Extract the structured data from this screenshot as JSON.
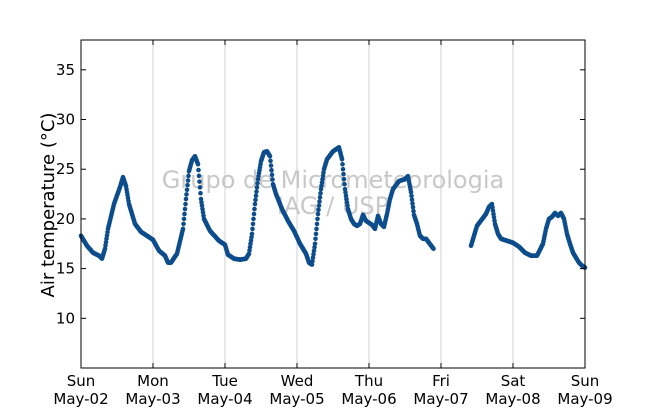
{
  "chart_data": {
    "type": "scatter",
    "ylabel": "Air temperature (°C)",
    "xlabel": "",
    "ylim": [
      5,
      38
    ],
    "yticks": [
      10,
      15,
      20,
      25,
      30,
      35
    ],
    "xlim": [
      "2010-05-02T00:00",
      "2010-05-09T00:00"
    ],
    "grid": "vertical lines at day boundaries",
    "watermark": [
      "Grupo de Micrometeorologia",
      "IAG / USP"
    ],
    "point_color": "#0d4d8c",
    "xticks": [
      {
        "x": "2010-05-02T00:00",
        "weekday": "Sun",
        "date": "May-02"
      },
      {
        "x": "2010-05-03T00:00",
        "weekday": "Mon",
        "date": "May-03"
      },
      {
        "x": "2010-05-04T00:00",
        "weekday": "Tue",
        "date": "May-04"
      },
      {
        "x": "2010-05-05T00:00",
        "weekday": "Wed",
        "date": "May-05"
      },
      {
        "x": "2010-05-06T00:00",
        "weekday": "Thu",
        "date": "May-06"
      },
      {
        "x": "2010-05-07T00:00",
        "weekday": "Fri",
        "date": "May-07"
      },
      {
        "x": "2010-05-08T00:00",
        "weekday": "Sat",
        "date": "May-08"
      },
      {
        "x": "2010-05-09T00:00",
        "weekday": "Sun",
        "date": "May-09"
      }
    ],
    "series": [
      {
        "segments": [
          [
            [
              "2010-05-02T00:00",
              18.3
            ],
            [
              "2010-05-02T02:00",
              17.3
            ],
            [
              "2010-05-02T04:00",
              16.6
            ],
            [
              "2010-05-02T06:00",
              16.3
            ],
            [
              "2010-05-02T07:00",
              16.0
            ],
            [
              "2010-05-02T08:00",
              17.0
            ],
            [
              "2010-05-02T09:00",
              19.0
            ],
            [
              "2010-05-02T11:00",
              21.5
            ],
            [
              "2010-05-02T13:00",
              23.2
            ],
            [
              "2010-05-02T14:00",
              24.2
            ],
            [
              "2010-05-02T15:00",
              23.3
            ],
            [
              "2010-05-02T16:00",
              21.5
            ],
            [
              "2010-05-02T18:00",
              19.5
            ],
            [
              "2010-05-02T20:00",
              18.7
            ],
            [
              "2010-05-02T22:00",
              18.3
            ],
            [
              "2010-05-03T00:00",
              17.9
            ],
            [
              "2010-05-03T02:00",
              16.8
            ],
            [
              "2010-05-03T04:00",
              16.3
            ],
            [
              "2010-05-03T05:00",
              15.6
            ],
            [
              "2010-05-03T06:00",
              15.6
            ],
            [
              "2010-05-03T08:00",
              16.5
            ],
            [
              "2010-05-03T10:00",
              19.0
            ],
            [
              "2010-05-03T11:00",
              22.0
            ],
            [
              "2010-05-03T12:00",
              24.8
            ],
            [
              "2010-05-03T13:00",
              25.9
            ],
            [
              "2010-05-03T14:00",
              26.3
            ],
            [
              "2010-05-03T15:00",
              25.5
            ],
            [
              "2010-05-03T16:00",
              22.0
            ],
            [
              "2010-05-03T17:00",
              20.0
            ],
            [
              "2010-05-03T19:00",
              18.8
            ],
            [
              "2010-05-03T22:00",
              17.8
            ],
            [
              "2010-05-04T00:00",
              17.4
            ],
            [
              "2010-05-04T01:00",
              16.4
            ],
            [
              "2010-05-04T03:00",
              16.0
            ],
            [
              "2010-05-04T05:00",
              15.9
            ],
            [
              "2010-05-04T07:00",
              16.0
            ],
            [
              "2010-05-04T08:00",
              16.5
            ],
            [
              "2010-05-04T09:00",
              18.5
            ],
            [
              "2010-05-04T10:00",
              21.5
            ],
            [
              "2010-05-04T11:00",
              24.0
            ],
            [
              "2010-05-04T12:00",
              25.8
            ],
            [
              "2010-05-04T13:00",
              26.7
            ],
            [
              "2010-05-04T14:00",
              26.8
            ],
            [
              "2010-05-04T15:00",
              26.3
            ],
            [
              "2010-05-04T16:00",
              23.5
            ],
            [
              "2010-05-04T17:00",
              22.5
            ],
            [
              "2010-05-04T19:00",
              21.0
            ],
            [
              "2010-05-04T21:00",
              19.8
            ],
            [
              "2010-05-04T23:00",
              18.8
            ],
            [
              "2010-05-05T01:00",
              17.5
            ],
            [
              "2010-05-05T03:00",
              16.5
            ],
            [
              "2010-05-05T04:00",
              15.6
            ],
            [
              "2010-05-05T05:00",
              15.4
            ],
            [
              "2010-05-05T06:00",
              17.5
            ],
            [
              "2010-05-05T07:00",
              20.5
            ],
            [
              "2010-05-05T08:00",
              23.0
            ],
            [
              "2010-05-05T09:00",
              25.0
            ],
            [
              "2010-05-05T10:00",
              26.0
            ],
            [
              "2010-05-05T12:00",
              26.8
            ],
            [
              "2010-05-05T13:00",
              27.0
            ],
            [
              "2010-05-05T14:00",
              27.2
            ],
            [
              "2010-05-05T15:00",
              26.0
            ],
            [
              "2010-05-05T16:00",
              23.0
            ],
            [
              "2010-05-05T17:00",
              21.0
            ],
            [
              "2010-05-05T18:00",
              20.0
            ],
            [
              "2010-05-05T19:00",
              19.5
            ],
            [
              "2010-05-05T20:00",
              19.3
            ],
            [
              "2010-05-05T21:00",
              19.5
            ],
            [
              "2010-05-05T22:00",
              20.4
            ],
            [
              "2010-05-05T23:00",
              19.8
            ],
            [
              "2010-05-06T00:00",
              19.6
            ],
            [
              "2010-05-06T01:00",
              19.4
            ],
            [
              "2010-05-06T02:00",
              19.0
            ],
            [
              "2010-05-06T03:00",
              20.3
            ],
            [
              "2010-05-06T04:00",
              19.5
            ],
            [
              "2010-05-06T05:00",
              19.2
            ],
            [
              "2010-05-06T06:00",
              20.5
            ],
            [
              "2010-05-06T07:00",
              22.0
            ],
            [
              "2010-05-06T08:00",
              23.0
            ],
            [
              "2010-05-06T10:00",
              23.8
            ],
            [
              "2010-05-06T12:00",
              24.0
            ],
            [
              "2010-05-06T13:00",
              24.3
            ],
            [
              "2010-05-06T14:00",
              22.7
            ],
            [
              "2010-05-06T15:00",
              20.4
            ],
            [
              "2010-05-06T16:00",
              19.5
            ],
            [
              "2010-05-06T17:00",
              18.3
            ],
            [
              "2010-05-06T18:00",
              18.0
            ],
            [
              "2010-05-06T19:00",
              18.0
            ],
            [
              "2010-05-06T20:00",
              17.6
            ],
            [
              "2010-05-06T21:00",
              17.2
            ],
            [
              "2010-05-06T21:30",
              17.0
            ]
          ],
          [
            [
              "2010-05-07T10:00",
              17.3
            ],
            [
              "2010-05-07T11:00",
              18.3
            ],
            [
              "2010-05-07T12:00",
              19.3
            ],
            [
              "2010-05-07T13:00",
              19.7
            ],
            [
              "2010-05-07T14:00",
              20.1
            ],
            [
              "2010-05-07T15:00",
              20.5
            ],
            [
              "2010-05-07T16:00",
              21.2
            ],
            [
              "2010-05-07T17:00",
              21.5
            ],
            [
              "2010-05-07T18:00",
              19.5
            ],
            [
              "2010-05-07T19:00",
              18.5
            ],
            [
              "2010-05-07T20:00",
              18.0
            ],
            [
              "2010-05-07T22:00",
              17.8
            ],
            [
              "2010-05-08T00:00",
              17.6
            ],
            [
              "2010-05-08T02:00",
              17.2
            ],
            [
              "2010-05-08T04:00",
              16.6
            ],
            [
              "2010-05-08T06:00",
              16.3
            ],
            [
              "2010-05-08T08:00",
              16.3
            ],
            [
              "2010-05-08T10:00",
              17.5
            ],
            [
              "2010-05-08T11:00",
              19.0
            ],
            [
              "2010-05-08T12:00",
              20.0
            ],
            [
              "2010-05-08T13:00",
              20.2
            ],
            [
              "2010-05-08T14:00",
              20.6
            ],
            [
              "2010-05-08T15:00",
              20.3
            ],
            [
              "2010-05-08T16:00",
              20.6
            ],
            [
              "2010-05-08T17:00",
              20.0
            ],
            [
              "2010-05-08T18:00",
              18.5
            ],
            [
              "2010-05-08T19:00",
              17.5
            ],
            [
              "2010-05-08T20:00",
              16.6
            ],
            [
              "2010-05-08T21:00",
              16.1
            ],
            [
              "2010-05-08T22:00",
              15.6
            ],
            [
              "2010-05-08T23:00",
              15.3
            ],
            [
              "2010-05-09T00:00",
              15.1
            ]
          ]
        ]
      }
    ]
  }
}
